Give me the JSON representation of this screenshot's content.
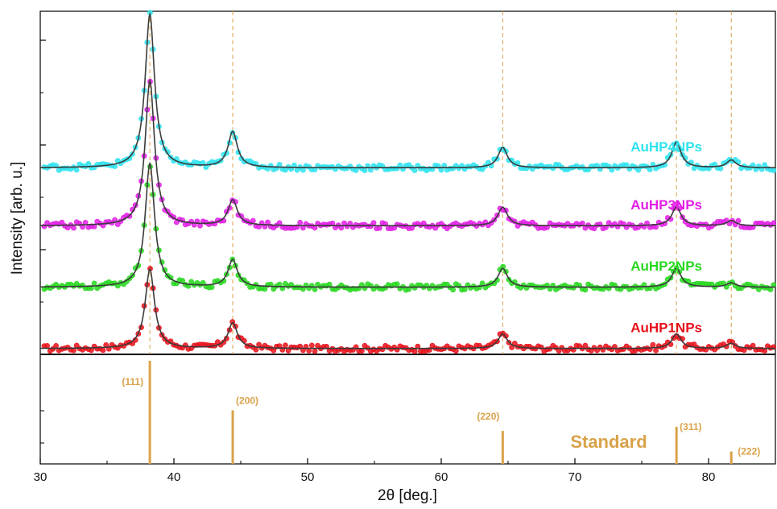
{
  "chart_data": {
    "type": "line",
    "xlabel": "2θ [deg.]",
    "ylabel": "Intensity [arb. u.]",
    "xlim": [
      30,
      85
    ],
    "xticks": [
      30,
      40,
      50,
      60,
      70,
      80
    ],
    "grid": false,
    "series": [
      {
        "name": "AuHP1NPs",
        "color": "#e8101a",
        "offset": 0.03,
        "peaks": [
          {
            "x": 38.2,
            "y": 0.93
          },
          {
            "x": 44.4,
            "y": 0.3
          },
          {
            "x": 64.6,
            "y": 0.17
          },
          {
            "x": 77.6,
            "y": 0.17
          },
          {
            "x": 81.7,
            "y": 0.06
          }
        ]
      },
      {
        "name": "AuHP2NPs",
        "color": "#27d81f",
        "offset": 0.75,
        "peaks": [
          {
            "x": 38.2,
            "y": 1.45
          },
          {
            "x": 44.4,
            "y": 0.32
          },
          {
            "x": 64.6,
            "y": 0.22
          },
          {
            "x": 77.6,
            "y": 0.22
          },
          {
            "x": 81.7,
            "y": 0.05
          }
        ]
      },
      {
        "name": "AuHP3NPs",
        "color": "#e21fe6",
        "offset": 1.47,
        "peaks": [
          {
            "x": 38.2,
            "y": 1.7
          },
          {
            "x": 44.4,
            "y": 0.3
          },
          {
            "x": 64.6,
            "y": 0.22
          },
          {
            "x": 77.6,
            "y": 0.22
          },
          {
            "x": 81.7,
            "y": 0.06
          }
        ]
      },
      {
        "name": "AuHP4NPs",
        "color": "#2de3ee",
        "offset": 2.15,
        "peaks": [
          {
            "x": 38.2,
            "y": 1.8
          },
          {
            "x": 44.4,
            "y": 0.42
          },
          {
            "x": 64.6,
            "y": 0.24
          },
          {
            "x": 77.6,
            "y": 0.3
          },
          {
            "x": 81.7,
            "y": 0.09
          }
        ]
      }
    ],
    "reference": {
      "name": "Standard",
      "color": "#d9a24a",
      "lines": [
        {
          "x": 38.2,
          "label": "(111)",
          "intensity": 100
        },
        {
          "x": 44.4,
          "label": "(200)",
          "intensity": 52
        },
        {
          "x": 64.6,
          "label": "(220)",
          "intensity": 32
        },
        {
          "x": 77.6,
          "label": "(311)",
          "intensity": 36
        },
        {
          "x": 81.7,
          "label": "(222)",
          "intensity": 12
        }
      ]
    }
  }
}
